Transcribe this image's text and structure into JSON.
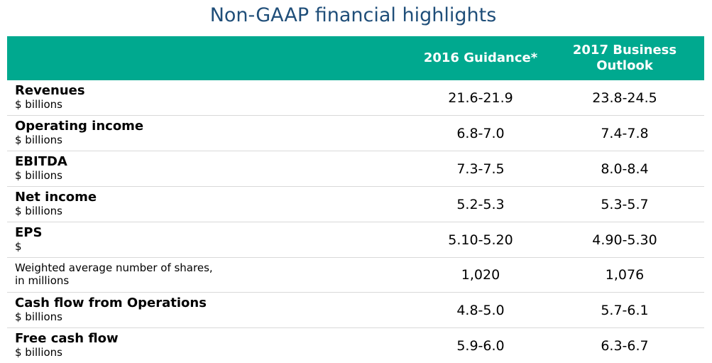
{
  "title": "Non-GAAP financial highlights",
  "colors": {
    "title": "#1f4e79",
    "header_bg": "#00a98f",
    "header_text": "#ffffff",
    "divider": "#d9d9d9"
  },
  "table": {
    "headers": {
      "col1": "2016 Guidance*",
      "col2": "2017 Business Outlook"
    },
    "rows": [
      {
        "label": "Revenues",
        "unit": "$ billions",
        "v2016": "21.6-21.9",
        "v2017": "23.8-24.5"
      },
      {
        "label": "Operating income",
        "unit": "$ billions",
        "v2016": "6.8-7.0",
        "v2017": "7.4-7.8"
      },
      {
        "label": "EBITDA",
        "unit": "$ billions",
        "v2016": "7.3-7.5",
        "v2017": "8.0-8.4"
      },
      {
        "label": "Net income",
        "unit": "$ billions",
        "v2016": "5.2-5.3",
        "v2017": "5.3-5.7"
      },
      {
        "label": "EPS",
        "unit": "$",
        "v2016": "5.10-5.20",
        "v2017": "4.90-5.30"
      },
      {
        "label": "Weighted average number of shares,\nin millions",
        "unit": "",
        "v2016": "1,020",
        "v2017": "1,076"
      },
      {
        "label": "Cash flow from Operations",
        "unit": "$ billions",
        "v2016": "4.8-5.0",
        "v2017": "5.7-6.1"
      },
      {
        "label": "Free cash flow",
        "unit": "$ billions",
        "v2016": "5.9-6.0",
        "v2017": "6.3-6.7"
      }
    ]
  }
}
